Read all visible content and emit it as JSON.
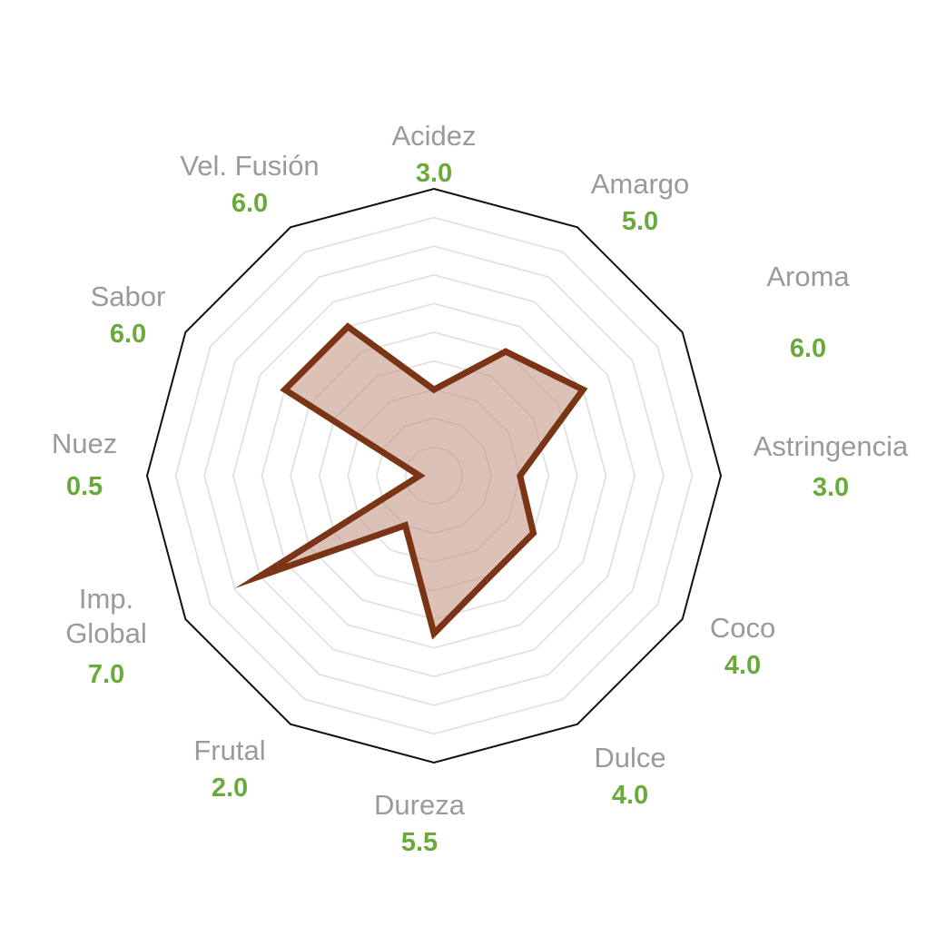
{
  "chart_data": {
    "type": "radar",
    "range": [
      0,
      10
    ],
    "rings": 10,
    "grid": true,
    "colors": {
      "outline": "#111111",
      "grid": "#dddddd",
      "series_stroke": "#7b3416",
      "series_fill": "#c49a85",
      "axis_name": "#9a9a9a",
      "axis_value": "#6aaa3a"
    },
    "axes": [
      {
        "lines": [
          "Acidez"
        ],
        "display": "3.0",
        "value": 3.0
      },
      {
        "lines": [
          "Amargo"
        ],
        "display": "5.0",
        "value": 5.0
      },
      {
        "lines": [
          "Aroma"
        ],
        "display": "6.0",
        "value": 6.0
      },
      {
        "lines": [
          "Astringencia"
        ],
        "display": "3.0",
        "value": 3.0
      },
      {
        "lines": [
          "Coco"
        ],
        "display": "4.0",
        "value": 4.0
      },
      {
        "lines": [
          "Dulce"
        ],
        "display": "4.0",
        "value": 4.0
      },
      {
        "lines": [
          "Dureza"
        ],
        "display": "5.5",
        "value": 5.5
      },
      {
        "lines": [
          "Frutal"
        ],
        "display": "2.0",
        "value": 2.0
      },
      {
        "lines": [
          "Imp.",
          "Global"
        ],
        "display": "7.0",
        "value": 7.0
      },
      {
        "lines": [
          "Nuez"
        ],
        "display": "0.5",
        "value": 0.5
      },
      {
        "lines": [
          "Sabor"
        ],
        "display": "6.0",
        "value": 6.0
      },
      {
        "lines": [
          "Vel. Fusión"
        ],
        "display": "6.0",
        "value": 6.0
      }
    ]
  }
}
